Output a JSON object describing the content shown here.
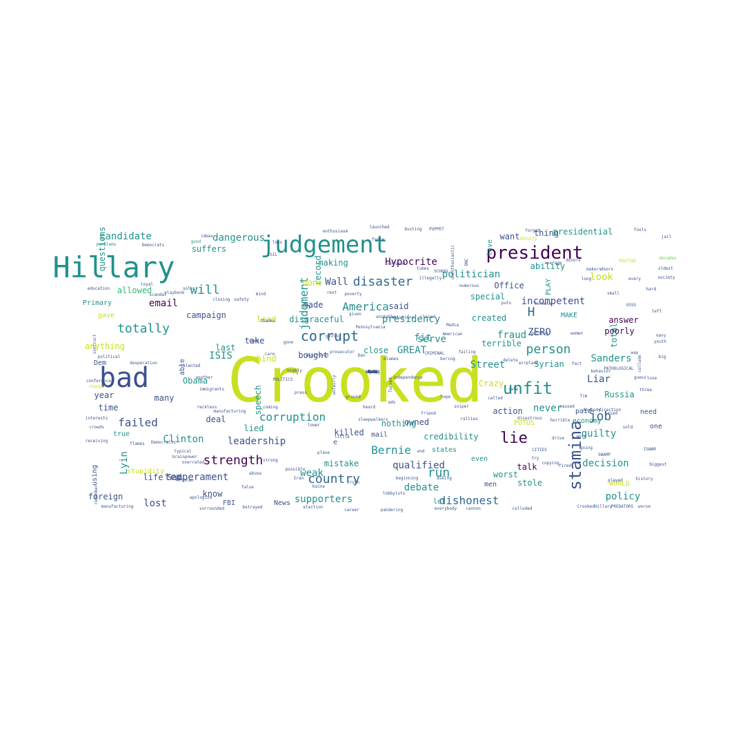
{
  "palette": {
    "yellow_green": "#c8e020",
    "teal": "#21918c",
    "dark_purple": "#440154",
    "navy": "#3b528b",
    "blue": "#31688e",
    "green": "#35b779",
    "light_green": "#6ece58",
    "yellow": "#fde725"
  },
  "words": [
    {
      "t": "Crooked",
      "c": "yellow_green"
    },
    {
      "t": "Hillary",
      "c": "teal"
    },
    {
      "t": "judgement",
      "c": "teal"
    },
    {
      "t": "bad",
      "c": "navy"
    },
    {
      "t": "president",
      "c": "dark_purple"
    },
    {
      "t": "stamina",
      "c": "navy"
    },
    {
      "t": "unfit",
      "c": "teal"
    },
    {
      "t": "lie",
      "c": "dark_purple"
    },
    {
      "t": "corrupt",
      "c": "blue"
    },
    {
      "t": "country",
      "c": "blue"
    },
    {
      "t": "strength",
      "c": "dark_purple"
    },
    {
      "t": "disaster",
      "c": "blue"
    },
    {
      "t": "person",
      "c": "teal"
    },
    {
      "t": "totally",
      "c": "teal"
    },
    {
      "t": "failed",
      "c": "navy"
    },
    {
      "t": "will",
      "c": "teal"
    },
    {
      "t": "job",
      "c": "blue"
    },
    {
      "t": "run",
      "c": "teal"
    },
    {
      "t": "corruption",
      "c": "teal"
    },
    {
      "t": "candidate",
      "c": "teal"
    },
    {
      "t": "dangerous",
      "c": "teal"
    },
    {
      "t": "America",
      "c": "teal"
    },
    {
      "t": "dishonest",
      "c": "blue"
    },
    {
      "t": "judgment",
      "c": "teal"
    },
    {
      "t": "Bernie",
      "c": "teal"
    },
    {
      "t": "H",
      "c": "blue"
    },
    {
      "t": "incompetent",
      "c": "navy"
    },
    {
      "t": "politician",
      "c": "teal"
    },
    {
      "t": "presidency",
      "c": "teal"
    },
    {
      "t": "decision",
      "c": "teal"
    },
    {
      "t": "Hypocrite",
      "c": "dark_purple"
    },
    {
      "t": "weak",
      "c": "teal"
    },
    {
      "t": "fraud",
      "c": "teal"
    },
    {
      "t": "ZERO",
      "c": "navy"
    },
    {
      "t": "Clinton",
      "c": "teal"
    },
    {
      "t": "Liar",
      "c": "navy"
    },
    {
      "t": "fit",
      "c": "teal"
    },
    {
      "t": "look",
      "c": "yellow_green"
    },
    {
      "t": "debate",
      "c": "teal"
    },
    {
      "t": "supporters",
      "c": "teal"
    },
    {
      "t": "temperament",
      "c": "navy"
    },
    {
      "t": "GREAT",
      "c": "teal"
    },
    {
      "t": "serve",
      "c": "teal"
    },
    {
      "t": "Wall",
      "c": "navy"
    },
    {
      "t": "Street",
      "c": "teal"
    },
    {
      "t": "Sanders",
      "c": "teal"
    },
    {
      "t": "qualified",
      "c": "navy"
    },
    {
      "t": "guilty",
      "c": "teal"
    },
    {
      "t": "policy",
      "c": "teal"
    },
    {
      "t": "leadership",
      "c": "navy"
    },
    {
      "t": "lost",
      "c": "navy"
    },
    {
      "t": "never",
      "c": "teal"
    },
    {
      "t": "Lyin",
      "c": "teal"
    },
    {
      "t": "ISIS",
      "c": "teal"
    },
    {
      "t": "email",
      "c": "dark_purple"
    },
    {
      "t": "allowed",
      "c": "green"
    },
    {
      "t": "suffers",
      "c": "teal"
    },
    {
      "t": "questions",
      "c": "teal"
    },
    {
      "t": "record",
      "c": "teal"
    },
    {
      "t": "said",
      "c": "navy"
    },
    {
      "t": "anything",
      "c": "yellow_green"
    },
    {
      "t": "Crazy",
      "c": "yellow_green"
    },
    {
      "t": "Syrian",
      "c": "teal"
    },
    {
      "t": "Russia",
      "c": "teal"
    },
    {
      "t": "talk",
      "c": "dark_purple"
    },
    {
      "t": "lied",
      "c": "teal"
    },
    {
      "t": "killed",
      "c": "navy"
    },
    {
      "t": "mistake",
      "c": "teal"
    },
    {
      "t": "Obama",
      "c": "teal"
    },
    {
      "t": "speech",
      "c": "teal"
    },
    {
      "t": "life",
      "c": "navy"
    },
    {
      "t": "Sad",
      "c": "navy"
    },
    {
      "t": "foreign",
      "c": "navy"
    },
    {
      "t": "know",
      "c": "navy"
    },
    {
      "t": "total",
      "c": "teal"
    },
    {
      "t": "poorly",
      "c": "dark_purple"
    },
    {
      "t": "answer",
      "c": "dark_purple"
    },
    {
      "t": "stole",
      "c": "teal"
    },
    {
      "t": "worst",
      "c": "teal"
    },
    {
      "t": "credibility",
      "c": "teal"
    },
    {
      "t": "owned",
      "c": "navy"
    },
    {
      "t": "action",
      "c": "navy"
    },
    {
      "t": "terrible",
      "c": "teal"
    },
    {
      "t": "created",
      "c": "teal"
    },
    {
      "t": "special",
      "c": "teal"
    },
    {
      "t": "Office",
      "c": "navy"
    },
    {
      "t": "want",
      "c": "navy"
    },
    {
      "t": "thing",
      "c": "navy"
    },
    {
      "t": "presidential",
      "c": "teal"
    },
    {
      "t": "ability",
      "c": "teal"
    },
    {
      "t": "made",
      "c": "navy"
    },
    {
      "t": "disgraceful",
      "c": "teal"
    },
    {
      "t": "making",
      "c": "teal"
    },
    {
      "t": "done",
      "c": "yellow_green"
    },
    {
      "t": "campaign",
      "c": "navy"
    },
    {
      "t": "lead",
      "c": "yellow_green"
    },
    {
      "t": "last",
      "c": "teal"
    },
    {
      "t": "take",
      "c": "navy"
    },
    {
      "t": "behind",
      "c": "yellow_green"
    },
    {
      "t": "bought",
      "c": "navy"
    },
    {
      "t": "close",
      "c": "teal"
    },
    {
      "t": "nothing",
      "c": "teal"
    },
    {
      "t": "deal",
      "c": "navy"
    },
    {
      "t": "year",
      "c": "navy"
    },
    {
      "t": "many",
      "c": "navy"
    },
    {
      "t": "time",
      "c": "navy"
    },
    {
      "t": "true",
      "c": "teal"
    },
    {
      "t": "stupidity",
      "c": "yellow_green"
    },
    {
      "t": "using",
      "c": "navy"
    },
    {
      "t": "Primary",
      "c": "teal"
    },
    {
      "t": "gave",
      "c": "yellow_green"
    },
    {
      "t": "Dem",
      "c": "navy"
    },
    {
      "t": "able",
      "c": "navy"
    },
    {
      "t": "mail",
      "c": "navy"
    },
    {
      "t": "e",
      "c": "navy"
    },
    {
      "t": "states",
      "c": "teal"
    },
    {
      "t": "even",
      "c": "teal"
    },
    {
      "t": "let",
      "c": "teal"
    },
    {
      "t": "News",
      "c": "navy"
    },
    {
      "t": "FBI",
      "c": "navy"
    },
    {
      "t": "economy",
      "c": "teal"
    },
    {
      "t": "paid",
      "c": "navy"
    },
    {
      "t": "MAKE",
      "c": "teal"
    },
    {
      "t": "need",
      "c": "navy"
    },
    {
      "t": "one",
      "c": "navy"
    },
    {
      "t": "WORLD",
      "c": "yellow_green"
    },
    {
      "t": "POTUS",
      "c": "yellow_green"
    },
    {
      "t": "PLAY",
      "c": "teal"
    },
    {
      "t": "love",
      "c": "teal"
    },
    {
      "t": "men",
      "c": "navy"
    },
    {
      "t": "problems",
      "c": "teal"
    },
    {
      "t": "Democrats",
      "c": "navy"
    },
    {
      "t": "ideas",
      "c": "navy"
    },
    {
      "t": "good",
      "c": "teal"
    },
    {
      "t": "loss",
      "c": "navy"
    },
    {
      "t": "fools",
      "c": "navy"
    },
    {
      "t": "jail",
      "c": "navy"
    },
    {
      "t": "decades",
      "c": "light_green"
    },
    {
      "t": "oldest",
      "c": "navy"
    },
    {
      "t": "society",
      "c": "navy"
    },
    {
      "t": "education",
      "c": "navy"
    },
    {
      "t": "closing",
      "c": "navy"
    },
    {
      "t": "safety",
      "c": "navy"
    },
    {
      "t": "mind",
      "c": "navy"
    },
    {
      "t": "solve",
      "c": "navy"
    },
    {
      "t": "loyal",
      "c": "navy"
    },
    {
      "t": "scandal",
      "c": "navy"
    },
    {
      "t": "playbook",
      "c": "navy"
    },
    {
      "t": "instruct",
      "c": "navy"
    },
    {
      "t": "conference",
      "c": "navy"
    },
    {
      "t": "change",
      "c": "yellow_green"
    },
    {
      "t": "interests",
      "c": "navy"
    },
    {
      "t": "crowds",
      "c": "navy"
    },
    {
      "t": "receiving",
      "c": "navy"
    },
    {
      "t": "remember",
      "c": "navy"
    },
    {
      "t": "manufacturing",
      "c": "navy"
    },
    {
      "t": "apologize",
      "c": "navy"
    },
    {
      "t": "surrounded",
      "c": "navy"
    },
    {
      "t": "betrayed",
      "c": "navy"
    },
    {
      "t": "election",
      "c": "navy"
    },
    {
      "t": "career",
      "c": "navy"
    },
    {
      "t": "pandering",
      "c": "navy"
    },
    {
      "t": "everybody",
      "c": "navy"
    },
    {
      "t": "cannon",
      "c": "navy"
    },
    {
      "t": "colluded",
      "c": "navy"
    },
    {
      "t": "CrookedHillary",
      "c": "navy"
    },
    {
      "t": "PREDATORS",
      "c": "navy"
    },
    {
      "t": "worse",
      "c": "navy"
    },
    {
      "t": "history",
      "c": "navy"
    },
    {
      "t": "biggest",
      "c": "navy"
    },
    {
      "t": "played",
      "c": "navy"
    },
    {
      "t": "disastrous",
      "c": "navy"
    },
    {
      "t": "rallies",
      "c": "navy"
    },
    {
      "t": "Anybody",
      "c": "navy"
    },
    {
      "t": "direction",
      "c": "navy"
    },
    {
      "t": "horrible",
      "c": "navy"
    },
    {
      "t": "CITIES",
      "c": "navy"
    },
    {
      "t": "copying",
      "c": "navy"
    },
    {
      "t": "collude",
      "c": "navy"
    },
    {
      "t": "youth",
      "c": "navy"
    },
    {
      "t": "boring",
      "c": "navy"
    },
    {
      "t": "blames",
      "c": "navy"
    },
    {
      "t": "prosecutor",
      "c": "navy"
    },
    {
      "t": "destroyed",
      "c": "navy"
    },
    {
      "t": "highly",
      "c": "navy"
    },
    {
      "t": "another",
      "c": "navy"
    },
    {
      "t": "desperation",
      "c": "navy"
    },
    {
      "t": "political",
      "c": "navy"
    },
    {
      "t": "immigrants",
      "c": "navy"
    },
    {
      "t": "Democratic",
      "c": "navy"
    },
    {
      "t": "flames",
      "c": "navy"
    },
    {
      "t": "typical",
      "c": "navy"
    },
    {
      "t": "brainpower",
      "c": "navy"
    },
    {
      "t": "overrated",
      "c": "navy"
    },
    {
      "t": "possible",
      "c": "navy"
    },
    {
      "t": "beginning",
      "c": "navy"
    },
    {
      "t": "asking",
      "c": "navy"
    },
    {
      "t": "lobbyists",
      "c": "navy"
    },
    {
      "t": "enthusiasm",
      "c": "navy"
    },
    {
      "t": "launched",
      "c": "navy"
    },
    {
      "t": "busting",
      "c": "navy"
    },
    {
      "t": "PUPPET",
      "c": "navy"
    },
    {
      "t": "forget",
      "c": "navy"
    },
    {
      "t": "CIRCUITS",
      "c": "yellow_green"
    },
    {
      "t": "average",
      "c": "navy"
    },
    {
      "t": "donors",
      "c": "navy"
    },
    {
      "t": "makers",
      "c": "navy"
    },
    {
      "t": "doors",
      "c": "navy"
    },
    {
      "t": "ROUTING",
      "c": "yellow_green"
    },
    {
      "t": "confused",
      "c": "navy"
    },
    {
      "t": "tubes",
      "c": "navy"
    },
    {
      "t": "illegally",
      "c": "navy"
    },
    {
      "t": "SCHOOL",
      "c": "navy"
    },
    {
      "t": "numerous",
      "c": "navy"
    },
    {
      "t": "puts",
      "c": "navy"
    },
    {
      "t": "formula",
      "c": "navy"
    },
    {
      "t": "CRIMINAL",
      "c": "navy"
    },
    {
      "t": "American",
      "c": "navy"
    },
    {
      "t": "failing",
      "c": "navy"
    },
    {
      "t": "sniper",
      "c": "navy"
    },
    {
      "t": "delete",
      "c": "navy"
    },
    {
      "t": "airplane",
      "c": "navy"
    },
    {
      "t": "behavior",
      "c": "navy"
    },
    {
      "t": "PATHOLOGICAL",
      "c": "navy"
    },
    {
      "t": "independence",
      "c": "navy"
    },
    {
      "t": "closed",
      "c": "navy"
    },
    {
      "t": "rest",
      "c": "navy"
    },
    {
      "t": "poverty",
      "c": "navy"
    },
    {
      "t": "given",
      "c": "navy"
    },
    {
      "t": "Pennsylvania",
      "c": "navy"
    },
    {
      "t": "unstable",
      "c": "navy"
    },
    {
      "t": "solutions",
      "c": "navy"
    },
    {
      "t": "talented",
      "c": "navy"
    },
    {
      "t": "African",
      "c": "navy"
    },
    {
      "t": "false",
      "c": "navy"
    },
    {
      "t": "truth",
      "c": "navy"
    },
    {
      "t": "plane",
      "c": "navy"
    },
    {
      "t": "little",
      "c": "navy"
    },
    {
      "t": "unfairly",
      "c": "navy"
    },
    {
      "t": "Turned",
      "c": "navy"
    },
    {
      "t": "unenthusiastic",
      "c": "navy"
    },
    {
      "t": "DNC",
      "c": "navy"
    },
    {
      "t": "reckless",
      "c": "navy"
    },
    {
      "t": "manufacturing",
      "c": "navy"
    },
    {
      "t": "coming",
      "c": "navy"
    },
    {
      "t": "sleepwalkers",
      "c": "navy"
    },
    {
      "t": "giving",
      "c": "navy"
    },
    {
      "t": "thanks",
      "c": "navy"
    },
    {
      "t": "getting",
      "c": "navy"
    },
    {
      "t": "going",
      "c": "navy"
    },
    {
      "t": "SWAMP",
      "c": "navy"
    },
    {
      "t": "fired",
      "c": "navy"
    },
    {
      "t": "drive",
      "c": "navy"
    },
    {
      "t": "ISIL",
      "c": "navy"
    },
    {
      "t": "try",
      "c": "navy"
    },
    {
      "t": "women",
      "c": "navy"
    },
    {
      "t": "Media",
      "c": "navy"
    },
    {
      "t": "word",
      "c": "navy"
    },
    {
      "t": "long",
      "c": "navy"
    },
    {
      "t": "small",
      "c": "navy"
    },
    {
      "t": "USSS",
      "c": "navy"
    },
    {
      "t": "Dan",
      "c": "navy"
    },
    {
      "t": "fact",
      "c": "navy"
    },
    {
      "t": "way",
      "c": "navy"
    },
    {
      "t": "guess",
      "c": "navy"
    },
    {
      "t": "three",
      "c": "navy"
    },
    {
      "t": "dumb",
      "c": "navy"
    },
    {
      "t": "gone",
      "c": "navy"
    },
    {
      "t": "care",
      "c": "navy"
    },
    {
      "t": "POLITICS",
      "c": "navy"
    },
    {
      "t": "press",
      "c": "navy"
    },
    {
      "t": "lower",
      "c": "navy"
    },
    {
      "t": "abuse",
      "c": "navy"
    },
    {
      "t": "strong",
      "c": "navy"
    },
    {
      "t": "Iran",
      "c": "navy"
    },
    {
      "t": "Kaine",
      "c": "navy"
    },
    {
      "t": "ground",
      "c": "navy"
    },
    {
      "t": "heard",
      "c": "navy"
    },
    {
      "t": "ads",
      "c": "navy"
    },
    {
      "t": "end",
      "c": "navy"
    },
    {
      "t": "friend",
      "c": "navy"
    },
    {
      "t": "hope",
      "c": "navy"
    },
    {
      "t": "called",
      "c": "navy"
    },
    {
      "t": "rate",
      "c": "navy"
    },
    {
      "t": "caused",
      "c": "navy"
    },
    {
      "t": "Tim",
      "c": "navy"
    },
    {
      "t": "tried",
      "c": "navy"
    },
    {
      "t": "sold",
      "c": "navy"
    },
    {
      "t": "ISWAR",
      "c": "navy"
    },
    {
      "t": "every",
      "c": "navy"
    },
    {
      "t": "hard",
      "c": "navy"
    },
    {
      "t": "left",
      "c": "navy"
    },
    {
      "t": "navy",
      "c": "navy"
    },
    {
      "t": "big",
      "c": "navy"
    },
    {
      "t": "lose",
      "c": "navy"
    },
    {
      "t": "force",
      "c": "navy"
    },
    {
      "t": "well",
      "c": "navy"
    },
    {
      "t": "mess",
      "c": "navy"
    },
    {
      "t": "PAY",
      "c": "navy"
    },
    {
      "t": "made",
      "c": "navy"
    },
    {
      "t": "fool",
      "c": "navy"
    },
    {
      "t": "world",
      "c": "navy"
    },
    {
      "t": "aware",
      "c": "navy"
    },
    {
      "t": "hurt",
      "c": "navy"
    },
    {
      "t": "Dems",
      "c": "navy"
    },
    {
      "t": "whose",
      "c": "navy"
    },
    {
      "t": "easy",
      "c": "navy"
    },
    {
      "t": "taking",
      "c": "navy"
    },
    {
      "t": "gun",
      "c": "navy"
    },
    {
      "t": "fire",
      "c": "navy"
    },
    {
      "t": "fear",
      "c": "navy"
    },
    {
      "t": "lied",
      "c": "navy"
    }
  ]
}
